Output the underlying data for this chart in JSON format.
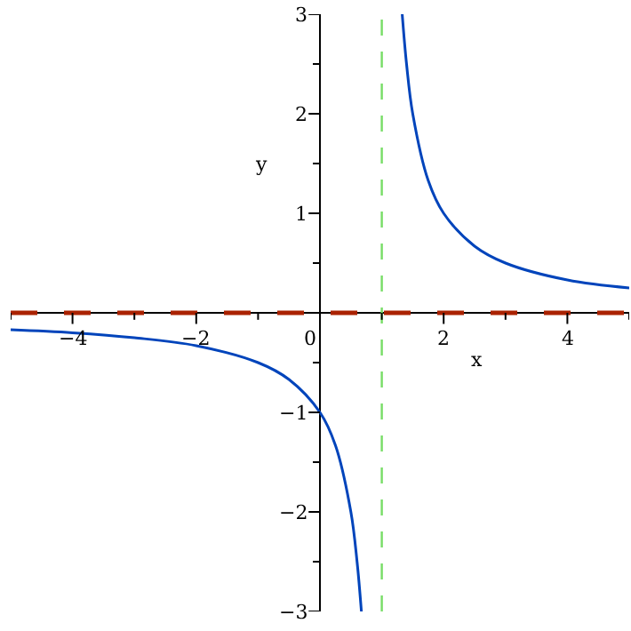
{
  "chart_data": {
    "type": "line",
    "xlabel": "x",
    "ylabel": "y",
    "x": [
      -5,
      -4,
      -3,
      -2,
      -1,
      -0.5,
      0,
      0.25,
      0.5,
      0.6,
      0.67,
      null,
      1.33,
      1.4,
      1.5,
      1.75,
      2,
      2.5,
      3,
      4,
      5
    ],
    "series": [
      {
        "color": "#0044bb",
        "values": [
          -0.17,
          -0.2,
          -0.25,
          -0.33,
          -0.5,
          -0.67,
          -1,
          -1.33,
          -2,
          -2.5,
          -3,
          null,
          3,
          2.5,
          2,
          1.33,
          1,
          0.67,
          0.5,
          0.33,
          0.25
        ]
      }
    ],
    "xlim": [
      -5,
      5
    ],
    "ylim": [
      -3,
      3
    ],
    "xticks": [
      {
        "value": -4,
        "label": "−4"
      },
      {
        "value": -2,
        "label": "−2"
      },
      {
        "value": 0,
        "label": "0"
      },
      2,
      4,
      {
        "value": -5,
        "label": null
      },
      {
        "value": -3,
        "label": null
      },
      {
        "value": -1,
        "label": null
      },
      {
        "value": 1,
        "label": null
      },
      {
        "value": 3,
        "label": null
      },
      {
        "value": 5,
        "label": null
      }
    ],
    "yticks": [
      {
        "value": -3,
        "label": "−3"
      },
      {
        "value": -2,
        "label": "−2"
      },
      {
        "value": -1,
        "label": "−1"
      },
      1,
      2,
      3,
      {
        "value": -2.5,
        "label": null
      },
      {
        "value": -1.5,
        "label": null
      },
      {
        "value": -0.5,
        "label": null
      },
      {
        "value": 0.5,
        "label": null
      },
      {
        "value": 1.5,
        "label": null
      },
      {
        "value": 2.5,
        "label": null
      }
    ],
    "ref_lines": [
      {
        "axis": "x",
        "value": 1,
        "color": "#77dd66",
        "line_style": "dashed"
      },
      {
        "axis": "y",
        "value": 0,
        "color": "#aa2200",
        "line_style": "dashed"
      }
    ],
    "grid": false,
    "marker": "none",
    "line_style": "solid"
  }
}
